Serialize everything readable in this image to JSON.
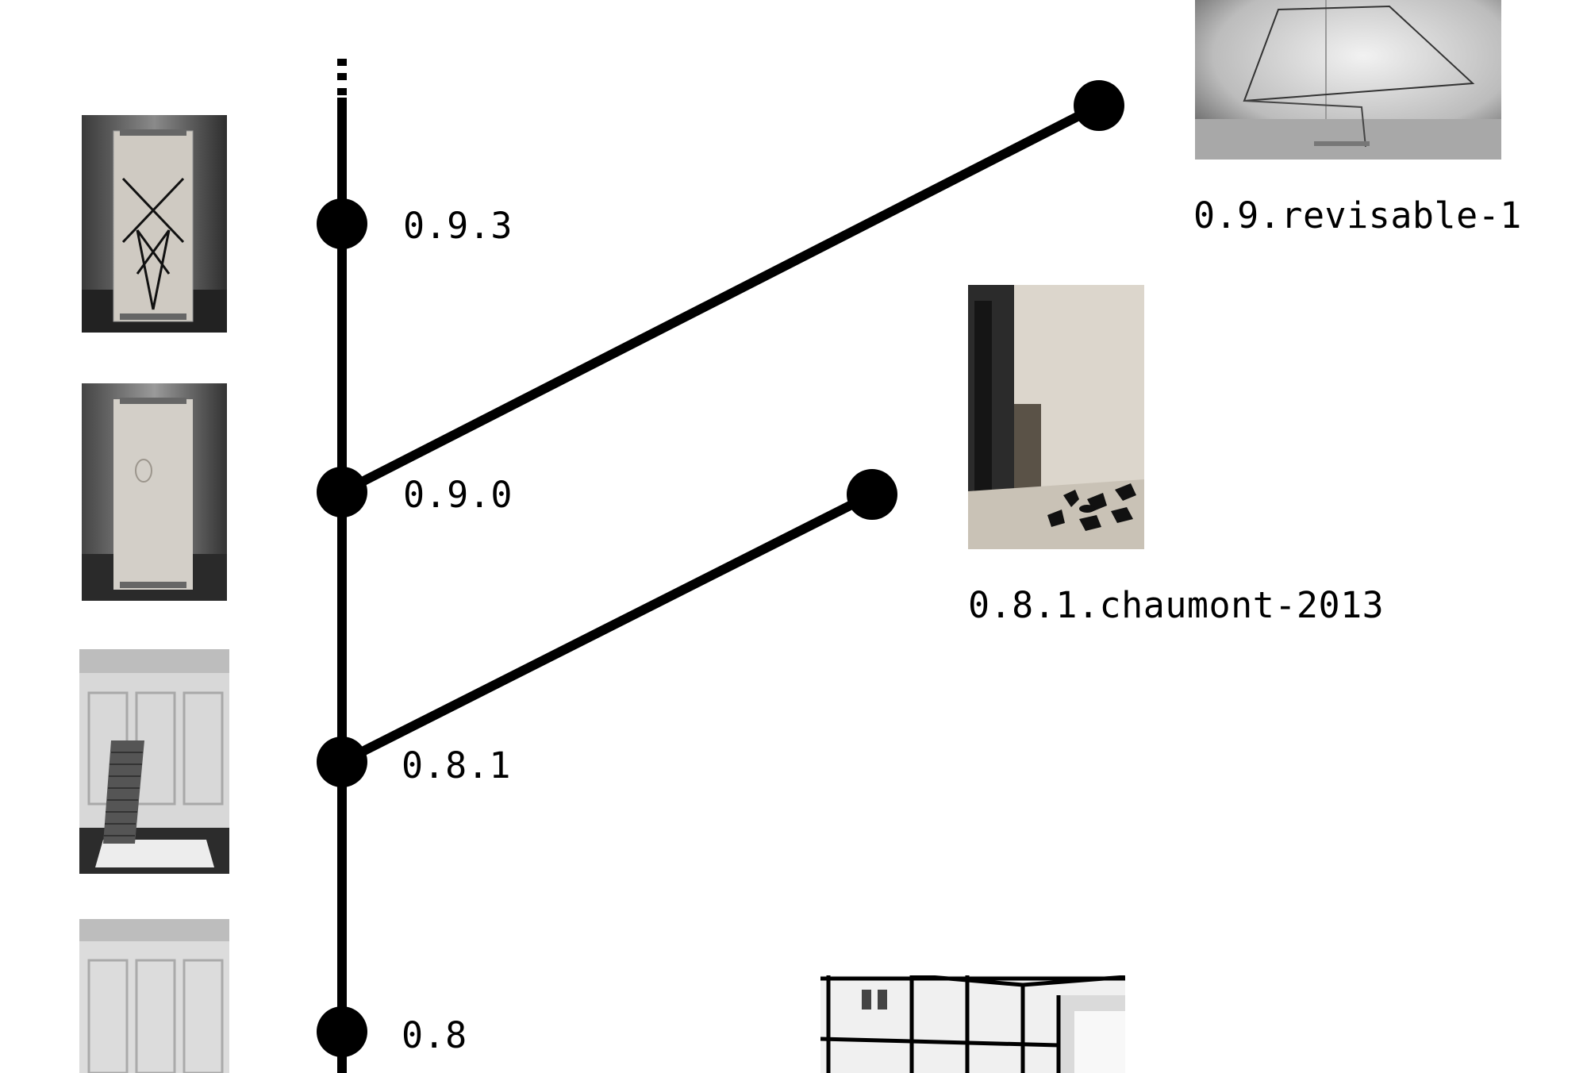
{
  "versions": {
    "v093": "0.9.3",
    "v090": "0.9.0",
    "v081": "0.8.1",
    "v08": "0.8"
  },
  "branches": {
    "revisable": "0.9.revisable-1",
    "chaumont": "0.8.1.chaumont-2013"
  }
}
